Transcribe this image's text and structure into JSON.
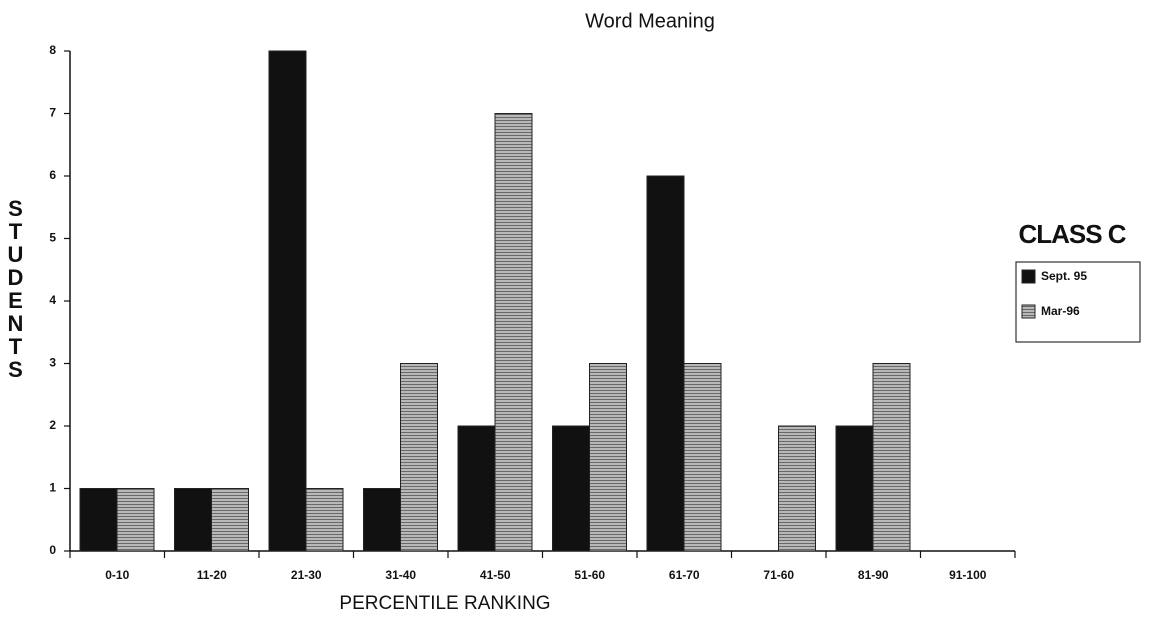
{
  "chart_data": {
    "type": "bar",
    "title": "Word Meaning",
    "x_label": "PERCENTILE RANKING",
    "y_label": "STUDENTS",
    "legend_title": "CLASS C",
    "legend": "right",
    "categories": [
      "0-10",
      "11-20",
      "21-30",
      "31-40",
      "41-50",
      "51-60",
      "61-70",
      "71-60",
      "81-90",
      "91-100"
    ],
    "series": [
      {
        "name": "Sept. 95",
        "color": "#111111",
        "values": [
          1,
          1,
          8,
          1,
          2,
          2,
          6,
          0,
          2,
          0
        ]
      },
      {
        "name": "Mar-96",
        "color": "#b8b8b8",
        "values": [
          1,
          1,
          1,
          3,
          7,
          3,
          3,
          2,
          3,
          0
        ]
      }
    ],
    "ylim": [
      0,
      8
    ],
    "yticks": [
      0,
      1,
      2,
      3,
      4,
      5,
      6,
      7,
      8
    ]
  }
}
